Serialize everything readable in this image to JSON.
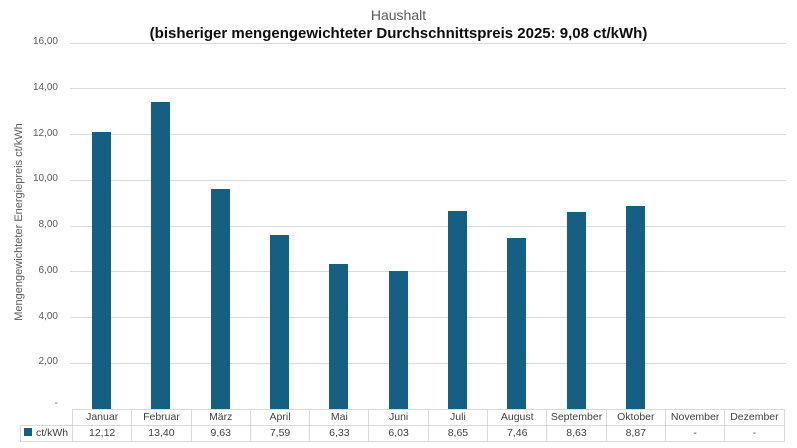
{
  "chart": {
    "title": "Haushalt",
    "subtitle": "(bisheriger mengengewichteter Durchschnittspreis 2025: 9,08 ct/kWh)",
    "y_axis_title": "Mengengewichteter Energiepreis ct/kWh",
    "legend_label": "ct/kWh",
    "colors": {
      "bar": "#156082",
      "gridline": "#D9D9D9",
      "table_border": "#D9D9D9",
      "axis_text": "#595959",
      "table_text": "#404040",
      "title_text": "#595959",
      "subtitle_text": "#0d0d0d"
    }
  },
  "chart_data": {
    "type": "bar",
    "title": "Haushalt",
    "subtitle": "(bisheriger mengengewichteter Durchschnittspreis 2025: 9,08 ct/kWh)",
    "ylabel": "Mengengewichteter Energiepreis ct/kWh",
    "series_name": "ct/kWh",
    "categories": [
      "Januar",
      "Februar",
      "März",
      "April",
      "Mai",
      "Juni",
      "Juli",
      "August",
      "September",
      "Oktober",
      "November",
      "Dezember"
    ],
    "values": [
      12.12,
      13.4,
      9.63,
      7.59,
      6.33,
      6.03,
      8.65,
      7.46,
      8.63,
      8.87,
      null,
      null
    ],
    "values_display": [
      "12,12",
      "13,40",
      "9,63",
      "7,59",
      "6,33",
      "6,03",
      "8,65",
      "7,46",
      "8,63",
      "8,87",
      "-",
      "-"
    ],
    "ylim": [
      0,
      16
    ],
    "ytick_step": 2,
    "ytick_labels": [
      "-",
      "2,00",
      "4,00",
      "6,00",
      "8,00",
      "10,00",
      "12,00",
      "14,00",
      "16,00"
    ],
    "grid": true,
    "legend_position": "data-table-left",
    "weighted_average_2025": "9,08 ct/kWh"
  }
}
